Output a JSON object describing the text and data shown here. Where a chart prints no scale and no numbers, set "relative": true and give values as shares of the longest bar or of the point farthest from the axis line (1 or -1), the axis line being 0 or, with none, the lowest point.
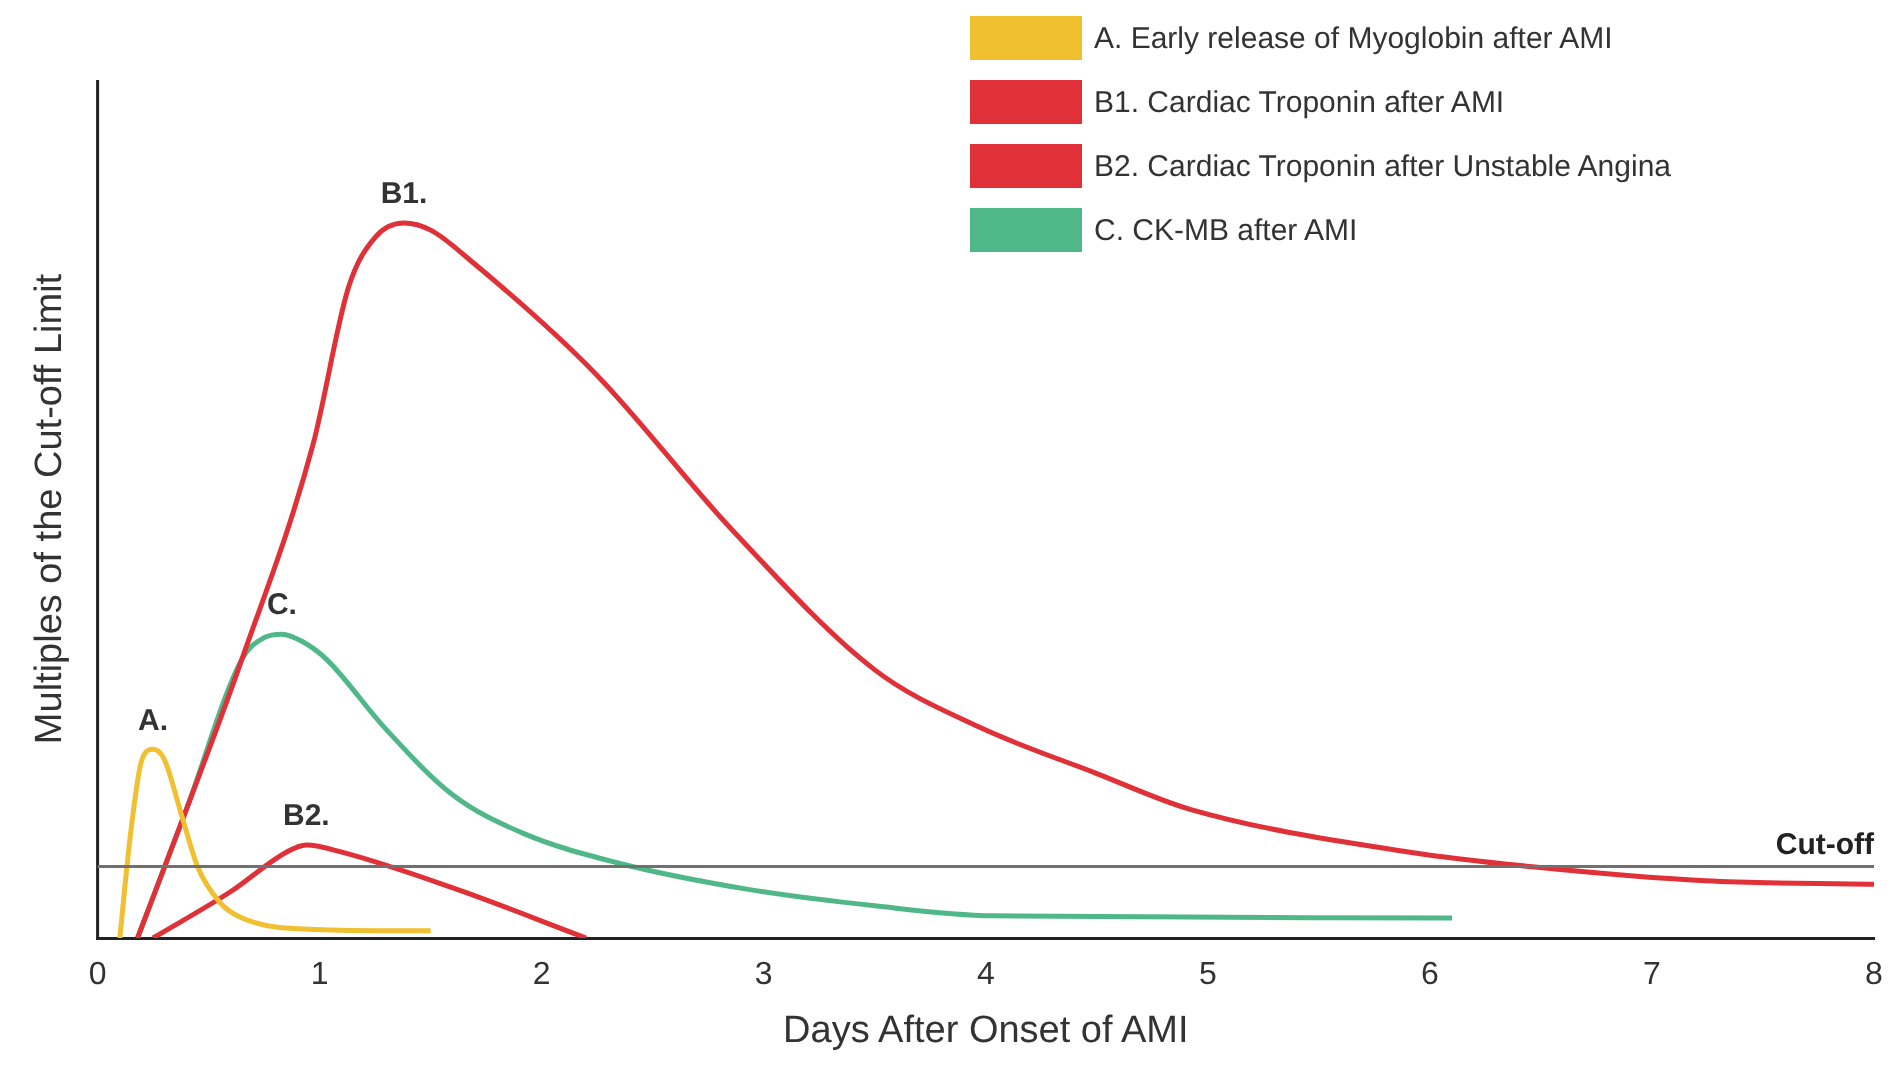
{
  "chart_data": {
    "type": "line",
    "relative": true,
    "xlabel": "Days After Onset of AMI",
    "ylabel": "Multiples of the Cut-off Limit",
    "xlim": [
      0,
      8
    ],
    "xticks": [
      0,
      1,
      2,
      3,
      4,
      5,
      6,
      7,
      8
    ],
    "legend": "top right",
    "marker": "none",
    "grid": false,
    "series": [
      {
        "name": "A. Early release of Myoglobin after AMI",
        "color": "#f0c030",
        "x": [
          0.1,
          0.15,
          0.2,
          0.25,
          0.3,
          0.38,
          0.45,
          0.55,
          0.65,
          0.97,
          1.5
        ],
        "values": [
          0,
          0.15,
          0.25,
          0.264,
          0.25,
          0.17,
          0.1,
          0.05,
          0.028,
          0.012,
          0.01
        ]
      },
      {
        "name": "B1. Cardiac Troponin after AMI",
        "color": "#e03038",
        "x": [
          0.18,
          0.4,
          0.65,
          0.97,
          1.13,
          1.25,
          1.38,
          1.5,
          1.67,
          2.24,
          2.86,
          3.5,
          3.97,
          4.5,
          4.92,
          5.91,
          6.45,
          7.24,
          8
        ],
        "values": [
          0,
          0.18,
          0.39,
          0.69,
          0.91,
          0.98,
          1,
          0.99,
          0.95,
          0.79,
          0.57,
          0.375,
          0.295,
          0.23,
          0.18,
          0.12,
          0.1,
          0.08,
          0.075
        ]
      },
      {
        "name": "B2. Cardiac Troponin after Unstable Angina",
        "color": "#e03038",
        "x": [
          0.25,
          0.6,
          0.85,
          0.94,
          1.1,
          1.6,
          2.2
        ],
        "values": [
          0,
          0.065,
          0.12,
          0.13,
          0.12,
          0.07,
          0
        ]
      },
      {
        "name": "C. CK-MB after AMI",
        "color": "#50b888",
        "x": [
          0.18,
          0.4,
          0.65,
          0.75,
          0.83,
          0.92,
          1.03,
          1.29,
          1.6,
          1.92,
          2.33,
          2.93,
          3.5,
          4.03,
          6.1
        ],
        "values": [
          0,
          0.18,
          0.39,
          0.42,
          0.425,
          0.415,
          0.39,
          0.295,
          0.2,
          0.146,
          0.106,
          0.068,
          0.045,
          0.031,
          0.028
        ]
      }
    ],
    "ref_lines": [
      {
        "axis": "y",
        "value": 0.1,
        "label": "Cut-off",
        "color": "#707070"
      }
    ],
    "annotations": [
      "A.",
      "B1.",
      "B2.",
      "C."
    ]
  }
}
